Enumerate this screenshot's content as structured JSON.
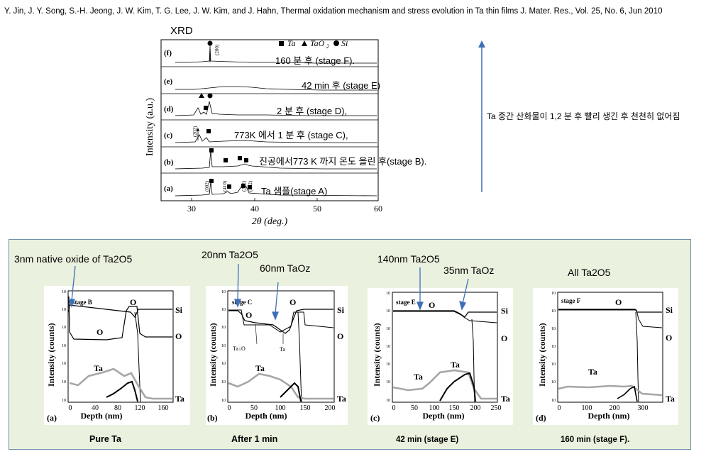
{
  "citation": "Y. Jin, J. Y. Song, S.-H. Jeong, J. W. Kim, T. G. Lee, J. W. Kim, and J. Hahn, Thermal oxidation mechanism and stress evolution in Ta thin films J. Mater. Res., Vol. 25, No. 6, Jun 2010",
  "note": "Ta 중간 산화물이 1,2 분 후 빨리 생긴 후 천천히 없어짐",
  "colors": {
    "panel_bg": "#eaf1de",
    "panel_border": "#6f8fa8",
    "arrow": "#3f6fb5",
    "trace_gray": "#a6a6a6"
  },
  "xrd": {
    "title": "XRD",
    "legend": {
      "ta": "Ta",
      "taox": "TaO",
      "taox_sub": "2",
      "si": "Si"
    },
    "ylabel": "Intensity (a.u.)",
    "xlabel": "2θ (deg.)",
    "xticks": [
      "30",
      "40",
      "50",
      "60"
    ],
    "panel_labels": [
      "(f)",
      "(e)",
      "(d)",
      "(c)",
      "(b)",
      "(a)"
    ],
    "peak_labels": {
      "si": "(200)",
      "p202c": "(202)",
      "p002": "(002)",
      "p410": "(410)",
      "p202": "(202)",
      "p212": "(212)"
    },
    "stage_notes": [
      "160 분 후 (stage F).",
      "42 min 후 (stage E)",
      "2 분 후 (stage D),",
      "773K 에서 1 분 후 (stage C),",
      "진공에서773 K 까지 온도 올린 후(stage B).",
      "Ta 샘플(stage A)"
    ]
  },
  "sims": {
    "annotations": [
      "3nm native oxide of Ta2O5",
      "20nm Ta2O5",
      "60nm TaOz",
      "140nm Ta2O5",
      "35nm TaOz",
      "All Ta2O5"
    ],
    "ylabel": "Intensity (counts)",
    "xlabel": "Depth (nm)",
    "yticks": [
      "10",
      "10",
      "10",
      "10",
      "10",
      "10",
      "10"
    ],
    "yexp": [
      "6",
      "5",
      "4",
      "3",
      "2",
      "1",
      "0"
    ],
    "panels": [
      {
        "letter": "(a)",
        "stage": "stage B",
        "caption": "Pure Ta",
        "xticks": [
          "0",
          "40",
          "80",
          "120",
          "160"
        ]
      },
      {
        "letter": "(b)",
        "stage": "stage C",
        "caption": "After 1 min",
        "xticks": [
          "0",
          "50",
          "100",
          "150",
          "200"
        ],
        "inner": [
          "Ta",
          "O",
          "5",
          "Ta"
        ]
      },
      {
        "letter": "(c)",
        "stage": "stage E",
        "caption": "42 min (stage E)",
        "xticks": [
          "0",
          "50",
          "100",
          "150",
          "200",
          "250"
        ]
      },
      {
        "letter": "(d)",
        "stage": "stage F",
        "caption": "160 min (stage F).",
        "xticks": [
          "0",
          "100",
          "200",
          "300"
        ]
      }
    ],
    "element_labels": {
      "o": "O",
      "si": "Si",
      "ta": "Ta"
    }
  }
}
